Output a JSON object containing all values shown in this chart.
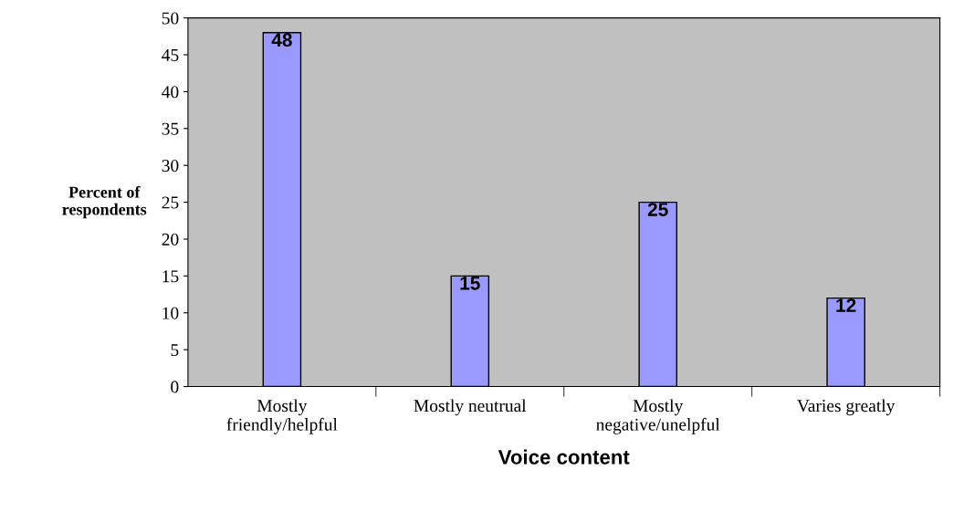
{
  "chart_data": {
    "type": "bar",
    "xlabel": "Voice content",
    "ylabel": "Percent of\nrespondents",
    "categories": [
      "Mostly\nfriendly/helpful",
      "Mostly neutrual",
      "Mostly\nnegative/unelpful",
      "Varies greatly"
    ],
    "values": [
      48,
      15,
      25,
      12
    ],
    "color": "#9999ff",
    "ylim": [
      0,
      50
    ],
    "yticks": [
      0,
      5,
      10,
      15,
      20,
      25,
      30,
      35,
      40,
      45,
      50
    ],
    "grid": false,
    "data_labels": true
  }
}
